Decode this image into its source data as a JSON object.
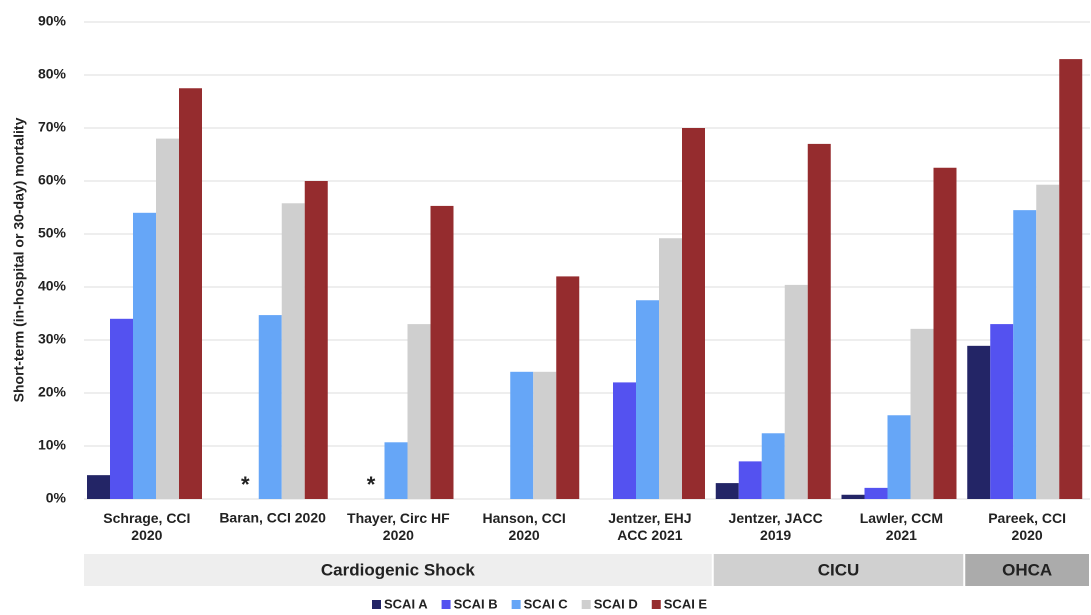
{
  "chart_data": {
    "type": "bar",
    "y_label": "Short-term (in-hospital or 30-day) mortality",
    "categories": [
      "Schrage, CCI\n2020",
      "Baran, CCI 2020",
      "Thayer, Circ HF\n2020",
      "Hanson, CCI\n2020",
      "Jentzer, EHJ\nACC 2021",
      "Jentzer, JACC\n2019",
      "Lawler, CCM\n2021",
      "Pareek, CCI\n2020"
    ],
    "groups": [
      "Cardiogenic Shock",
      "CICU",
      "OHCA"
    ],
    "series": [
      {
        "name": "SCAI A",
        "color": "#232566",
        "values": [
          4.5,
          null,
          null,
          null,
          null,
          3,
          0.8,
          28.9
        ]
      },
      {
        "name": "SCAI B",
        "color": "#5452f0",
        "values": [
          34,
          null,
          null,
          null,
          22,
          7.1,
          2.1,
          33
        ]
      },
      {
        "name": "SCAI C",
        "color": "#66a6f7",
        "values": [
          54,
          34.7,
          10.7,
          24,
          37.5,
          12.4,
          15.8,
          54.5
        ]
      },
      {
        "name": "SCAI D",
        "color": "#cfcfcf",
        "values": [
          68,
          55.8,
          33,
          24,
          49.2,
          40.4,
          32.1,
          59.3
        ]
      },
      {
        "name": "SCAI E",
        "color": "#952c2e",
        "values": [
          77.5,
          60,
          55.3,
          42,
          70,
          67,
          62.5,
          83
        ]
      }
    ],
    "annotations": [
      "*",
      "*"
    ],
    "ylim": [
      0,
      90
    ],
    "yticks": [
      {
        "value": 0,
        "label": "0%"
      },
      {
        "value": 10,
        "label": "10%"
      },
      {
        "value": 20,
        "label": "20%"
      },
      {
        "value": 30,
        "label": "30%"
      },
      {
        "value": 40,
        "label": "40%"
      },
      {
        "value": 50,
        "label": "50%"
      },
      {
        "value": 60,
        "label": "60%"
      },
      {
        "value": 70,
        "label": "70%"
      },
      {
        "value": 80,
        "label": "80%"
      },
      {
        "value": 90,
        "label": "90%"
      }
    ],
    "grid": true
  }
}
